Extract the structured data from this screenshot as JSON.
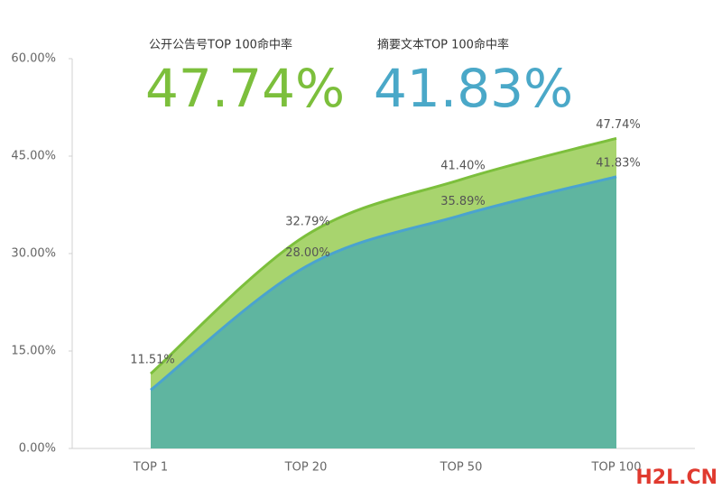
{
  "chart_data": {
    "type": "area",
    "categories": [
      "TOP 1",
      "TOP 20",
      "TOP 50",
      "TOP 100"
    ],
    "series": [
      {
        "name": "公开公告号TOP 100命中率",
        "color": "#7cbf3c",
        "fill": "#a8d46e",
        "values": [
          11.51,
          32.79,
          41.4,
          47.74
        ],
        "value_labels": [
          "11.51%",
          "32.79%",
          "41.40%",
          "47.74%"
        ]
      },
      {
        "name": "摘要文本TOP 100命中率",
        "color": "#4aa3cf",
        "fill": "#5fb5a0",
        "values": [
          9.0,
          28.0,
          35.89,
          41.83
        ],
        "value_labels": [
          null,
          "28.00%",
          "35.89%",
          "41.83%"
        ]
      }
    ],
    "annotations": [
      {
        "label": "公开公告号TOP 100命中率",
        "text": "47.74%",
        "color": "#7cbf3c"
      },
      {
        "label": "摘要文本TOP 100命中率",
        "text": "41.83%",
        "color": "#4aa8c8"
      }
    ],
    "watermark": "H2L.CN",
    "ylim": [
      0,
      60
    ],
    "yticks": [
      {
        "value": 0,
        "label": "0.00%"
      },
      {
        "value": 15,
        "label": "15.00%"
      },
      {
        "value": 30,
        "label": "30.00%"
      },
      {
        "value": 45,
        "label": "45.00%"
      },
      {
        "value": 60,
        "label": "60.00%"
      }
    ],
    "grid": false
  }
}
